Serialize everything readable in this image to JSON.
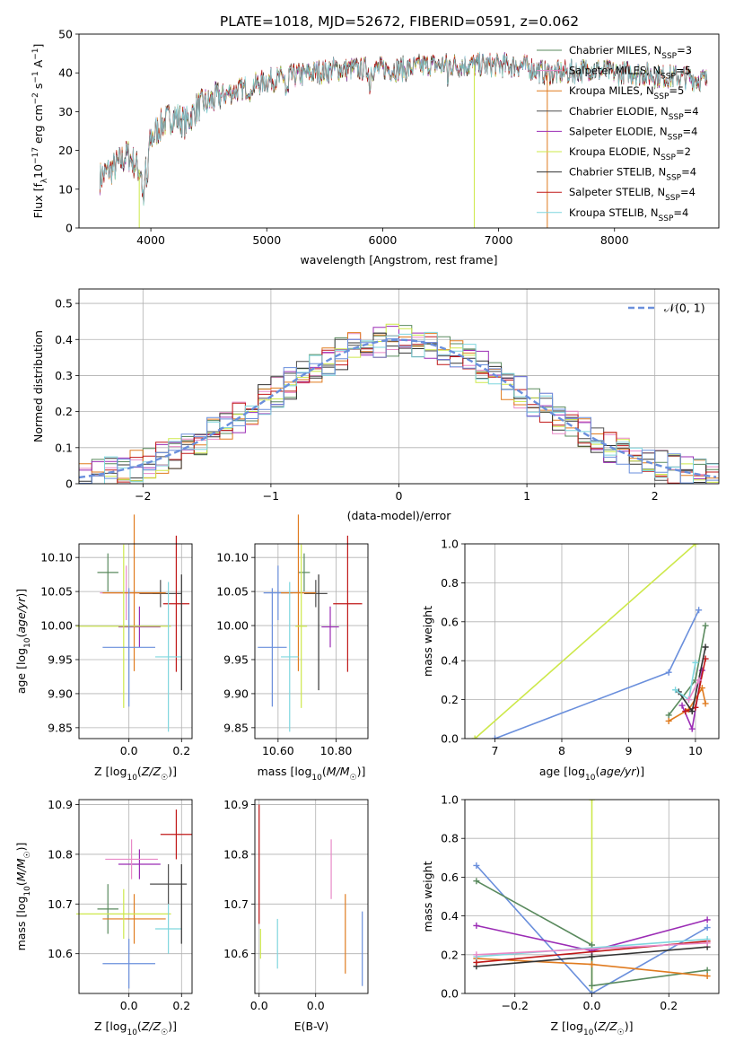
{
  "title": "PLATE=1018, MJD=52672, FIBERID=0591, z=0.062",
  "colors": {
    "chabrier_miles": "#5a8a5e",
    "salpeter_miles": "#e889c7",
    "kroupa_miles": "#e07b1f",
    "chabrier_elodie": "#4e4e4e",
    "salpeter_elodie": "#9b2cb5",
    "kroupa_elodie": "#cde84a",
    "chabrier_stelib": "#333333",
    "salpeter_stelib": "#c01818",
    "kroupa_stelib": "#7fd6de",
    "normal": "#6a8fdc"
  },
  "chart_data": [
    {
      "id": "spectrum",
      "type": "line",
      "xlabel": "wavelength [Angstrom, rest frame]",
      "ylabel": "Flux [f_λ 10^{-17} erg cm^{-2} s^{-1} A^{-1}]",
      "xlim": [
        3380,
        8900
      ],
      "ylim": [
        0,
        50
      ],
      "xticks": [
        4000,
        5000,
        6000,
        7000,
        8000
      ],
      "yticks": [
        0,
        10,
        20,
        30,
        40,
        50
      ],
      "grid": false,
      "legend_position": "upper right",
      "anchors": {
        "x": [
          3560,
          3700,
          3800,
          3900,
          3950,
          4000,
          4100,
          4200,
          4300,
          4400,
          4600,
          4800,
          5000,
          5200,
          5400,
          5600,
          5800,
          6000,
          6200,
          6400,
          6600,
          6800,
          7000,
          7200,
          7400,
          7600,
          7800,
          8000,
          8200,
          8400,
          8600,
          8800
        ],
        "y": [
          13,
          16,
          19,
          15,
          14,
          23,
          27,
          29,
          27,
          31,
          34,
          36,
          38,
          39,
          40,
          41,
          41,
          41,
          41,
          42,
          42,
          42,
          42,
          42,
          40,
          40,
          41,
          40,
          40,
          39,
          39,
          38
        ]
      },
      "drops": [
        {
          "x": 3900,
          "y": 0
        },
        {
          "x": 6790,
          "y": 0
        },
        {
          "x": 7420,
          "y": 0
        }
      ],
      "legend": [
        {
          "label": "Chabrier MILES, N",
          "sub": "SSP",
          "suffix": "=3",
          "color": "#5a8a5e"
        },
        {
          "label": "Salpeter MILES, N",
          "sub": "SSP",
          "suffix": "=5",
          "color": "#e889c7"
        },
        {
          "label": "Kroupa MILES, N",
          "sub": "SSP",
          "suffix": "=5",
          "color": "#e07b1f"
        },
        {
          "label": "Chabrier ELODIE, N",
          "sub": "SSP",
          "suffix": "=4",
          "color": "#4e4e4e"
        },
        {
          "label": "Salpeter ELODIE, N",
          "sub": "SSP",
          "suffix": "=4",
          "color": "#9b2cb5"
        },
        {
          "label": "Kroupa ELODIE, N",
          "sub": "SSP",
          "suffix": "=2",
          "color": "#cde84a"
        },
        {
          "label": "Chabrier STELIB, N",
          "sub": "SSP",
          "suffix": "=4",
          "color": "#333333"
        },
        {
          "label": "Salpeter STELIB, N",
          "sub": "SSP",
          "suffix": "=4",
          "color": "#c01818"
        },
        {
          "label": "Kroupa STELIB, N",
          "sub": "SSP",
          "suffix": "=4",
          "color": "#7fd6de"
        }
      ]
    },
    {
      "id": "residuals",
      "type": "step",
      "xlabel": "(data-model)/error",
      "ylabel": "Normed distribution",
      "xlim": [
        -2.5,
        2.5
      ],
      "ylim": [
        0,
        0.54
      ],
      "xticks": [
        -2,
        -1,
        0,
        1,
        2
      ],
      "yticks": [
        0.0,
        0.1,
        0.2,
        0.3,
        0.4,
        0.5
      ],
      "grid": true,
      "legend": "𝒩(0, 1)",
      "legend_position": "upper right",
      "bin_width": 0.1
    },
    {
      "id": "age_vs_Z",
      "type": "errorbar",
      "xlabel": "Z [log₁₀(Z/Z☉)]",
      "ylabel": "age  [log₁₀(age/yr)]",
      "xlim": [
        -0.19,
        0.24
      ],
      "ylim": [
        9.834,
        10.12
      ],
      "xticks": [
        0.0,
        0.2
      ],
      "yticks": [
        9.85,
        9.9,
        9.95,
        10.0,
        10.05,
        10.1
      ],
      "grid": true,
      "points": [
        {
          "x": -0.08,
          "xerr": 0.04,
          "y": 10.078,
          "yerr": 0.028,
          "color": "#5a8a5e"
        },
        {
          "x": 0.12,
          "xerr": 0.08,
          "y": 10.047,
          "yerr": 0.02,
          "color": "#4e4e4e"
        },
        {
          "x": 0.04,
          "xerr": 0.08,
          "y": 9.998,
          "yerr": 0.03,
          "color": "#9b2cb5"
        },
        {
          "x": -0.01,
          "xerr": 0.1,
          "y": 10.048,
          "yerr": 0.04,
          "color": "#e889c7"
        },
        {
          "x": 0.02,
          "xerr": 0.12,
          "y": 10.048,
          "yerr": 0.115,
          "color": "#e07b1f"
        },
        {
          "x": -0.02,
          "xerr": 0.18,
          "y": 9.999,
          "yerr": 0.12,
          "color": "#cde84a"
        },
        {
          "x": 0.0,
          "xerr": 0.1,
          "y": 9.968,
          "yerr": 0.087,
          "color": "#6a8fdc"
        },
        {
          "x": 0.18,
          "xerr": 0.05,
          "y": 10.032,
          "yerr": 0.1,
          "color": "#c01818"
        },
        {
          "x": 0.15,
          "xerr": 0.05,
          "y": 9.954,
          "yerr": 0.11,
          "color": "#7fd6de"
        },
        {
          "x": 0.2,
          "xerr": 0.0,
          "y": 9.99,
          "yerr": 0.085,
          "color": "#333333"
        }
      ]
    },
    {
      "id": "age_vs_mass",
      "type": "errorbar",
      "xlabel": "mass [log₁₀(M/M☉)]",
      "ylabel": "",
      "xlim": [
        10.52,
        10.91
      ],
      "ylim": [
        9.834,
        10.12
      ],
      "xticks": [
        10.6,
        10.8
      ],
      "yticks": [
        9.85,
        9.9,
        9.95,
        10.0,
        10.05,
        10.1
      ],
      "grid": true,
      "points": [
        {
          "x": 10.69,
          "xerr": 0.02,
          "y": 10.078,
          "yerr": 0.028,
          "color": "#5a8a5e"
        },
        {
          "x": 10.73,
          "xerr": 0.04,
          "y": 10.047,
          "yerr": 0.02,
          "color": "#4e4e4e"
        },
        {
          "x": 10.78,
          "xerr": 0.03,
          "y": 9.998,
          "yerr": 0.03,
          "color": "#9b2cb5"
        },
        {
          "x": 10.6,
          "xerr": 0.05,
          "y": 10.048,
          "yerr": 0.04,
          "color": "#6a8fdc"
        },
        {
          "x": 10.67,
          "xerr": 0.06,
          "y": 10.048,
          "yerr": 0.115,
          "color": "#e07b1f"
        },
        {
          "x": 10.68,
          "xerr": 0.02,
          "y": 9.999,
          "yerr": 0.12,
          "color": "#cde84a"
        },
        {
          "x": 10.58,
          "xerr": 0.05,
          "y": 9.968,
          "yerr": 0.087,
          "color": "#6a8fdc"
        },
        {
          "x": 10.84,
          "xerr": 0.05,
          "y": 10.032,
          "yerr": 0.1,
          "color": "#c01818"
        },
        {
          "x": 10.64,
          "xerr": 0.03,
          "y": 9.954,
          "yerr": 0.11,
          "color": "#7fd6de"
        },
        {
          "x": 10.74,
          "xerr": 0.0,
          "y": 9.99,
          "yerr": 0.085,
          "color": "#333333"
        }
      ]
    },
    {
      "id": "weight_vs_age",
      "type": "line",
      "xlabel": "age  [log₁₀(age/yr)]",
      "ylabel": "mass weight",
      "xlim": [
        6.55,
        10.35
      ],
      "ylim": [
        0,
        1
      ],
      "xticks": [
        7,
        8,
        9,
        10
      ],
      "yticks": [
        0.0,
        0.2,
        0.4,
        0.6,
        0.8,
        1.0
      ],
      "grid": true,
      "series": [
        {
          "color": "#cde84a",
          "points": [
            [
              6.7,
              0.0
            ],
            [
              10.0,
              1.0
            ]
          ]
        },
        {
          "color": "#6a8fdc",
          "points": [
            [
              7.0,
              0.0
            ],
            [
              9.6,
              0.34
            ],
            [
              10.05,
              0.66
            ]
          ]
        },
        {
          "color": "#5a8a5e",
          "points": [
            [
              9.6,
              0.12
            ],
            [
              10.0,
              0.3
            ],
            [
              10.15,
              0.58
            ]
          ]
        },
        {
          "color": "#e07b1f",
          "points": [
            [
              9.6,
              0.09
            ],
            [
              9.9,
              0.15
            ],
            [
              10.1,
              0.26
            ],
            [
              10.15,
              0.18
            ]
          ]
        },
        {
          "color": "#9b2cb5",
          "points": [
            [
              9.8,
              0.17
            ],
            [
              9.95,
              0.05
            ],
            [
              10.1,
              0.35
            ]
          ]
        },
        {
          "color": "#c01818",
          "points": [
            [
              9.85,
              0.14
            ],
            [
              10.0,
              0.16
            ],
            [
              10.15,
              0.41
            ]
          ]
        },
        {
          "color": "#333333",
          "points": [
            [
              9.75,
              0.24
            ],
            [
              9.95,
              0.14
            ],
            [
              10.15,
              0.47
            ]
          ]
        },
        {
          "color": "#7fd6de",
          "points": [
            [
              9.7,
              0.25
            ],
            [
              9.9,
              0.2
            ],
            [
              10.0,
              0.39
            ]
          ]
        },
        {
          "color": "#e889c7",
          "points": [
            [
              9.9,
              0.2
            ],
            [
              10.05,
              0.3
            ]
          ]
        }
      ]
    },
    {
      "id": "mass_vs_Z",
      "type": "errorbar",
      "xlabel": "Z [log₁₀(Z/Z☉)]",
      "ylabel": "mass [log₁₀(M/M☉)]",
      "xlim": [
        -0.19,
        0.24
      ],
      "ylim": [
        10.52,
        10.91
      ],
      "xticks": [
        0.0,
        0.2
      ],
      "yticks": [
        10.6,
        10.7,
        10.8,
        10.9
      ],
      "grid": true,
      "points": [
        {
          "x": -0.08,
          "xerr": 0.04,
          "y": 10.69,
          "yerr": 0.05,
          "color": "#5a8a5e"
        },
        {
          "x": 0.15,
          "xerr": 0.07,
          "y": 10.74,
          "yerr": 0.04,
          "color": "#4e4e4e"
        },
        {
          "x": 0.04,
          "xerr": 0.08,
          "y": 10.78,
          "yerr": 0.03,
          "color": "#9b2cb5"
        },
        {
          "x": 0.01,
          "xerr": 0.1,
          "y": 10.79,
          "yerr": 0.04,
          "color": "#e889c7"
        },
        {
          "x": 0.02,
          "xerr": 0.12,
          "y": 10.67,
          "yerr": 0.05,
          "color": "#e07b1f"
        },
        {
          "x": -0.02,
          "xerr": 0.18,
          "y": 10.68,
          "yerr": 0.05,
          "color": "#cde84a"
        },
        {
          "x": 0.0,
          "xerr": 0.1,
          "y": 10.58,
          "yerr": 0.05,
          "color": "#6a8fdc"
        },
        {
          "x": 0.18,
          "xerr": 0.06,
          "y": 10.84,
          "yerr": 0.05,
          "color": "#c01818"
        },
        {
          "x": 0.15,
          "xerr": 0.05,
          "y": 10.65,
          "yerr": 0.05,
          "color": "#7fd6de"
        },
        {
          "x": 0.2,
          "xerr": 0.0,
          "y": 10.7,
          "yerr": 0.08,
          "color": "#333333"
        }
      ]
    },
    {
      "id": "mass_vs_ebv",
      "type": "errorbar",
      "xlabel": "E(B-V)",
      "ylabel": "",
      "xlim": [
        -0.0015,
        0.0385
      ],
      "ylim": [
        10.52,
        10.91
      ],
      "xticks": [
        0.0,
        0.02
      ],
      "yticks": [
        10.6,
        10.7,
        10.8,
        10.9
      ],
      "grid": true,
      "points": [
        {
          "x": 0.0,
          "xerr": 0.0,
          "y": 10.78,
          "yerr": 0.12,
          "color": "#c01818"
        },
        {
          "x": 0.0005,
          "xerr": 0.0,
          "y": 10.62,
          "yerr": 0.03,
          "color": "#cde84a"
        },
        {
          "x": 0.0065,
          "xerr": 0.0,
          "y": 10.62,
          "yerr": 0.05,
          "color": "#7fd6de"
        },
        {
          "x": 0.0255,
          "xerr": 0.0,
          "y": 10.77,
          "yerr": 0.06,
          "color": "#e889c7"
        },
        {
          "x": 0.0305,
          "xerr": 0.0,
          "y": 10.64,
          "yerr": 0.08,
          "color": "#e07b1f"
        },
        {
          "x": 0.0365,
          "xerr": 0.0,
          "y": 10.61,
          "yerr": 0.075,
          "color": "#6a8fdc"
        }
      ]
    },
    {
      "id": "weight_vs_Z",
      "type": "line",
      "xlabel": "Z [log₁₀(Z/Z☉)]",
      "ylabel": "mass weight",
      "xlim": [
        -0.33,
        0.33
      ],
      "ylim": [
        0,
        1
      ],
      "xticks": [
        -0.2,
        0.0,
        0.2
      ],
      "yticks": [
        0.0,
        0.2,
        0.4,
        0.6,
        0.8,
        1.0
      ],
      "grid": true,
      "series": [
        {
          "color": "#cde84a",
          "points": [
            [
              0.0,
              0.0
            ],
            [
              0.0,
              1.0
            ]
          ]
        },
        {
          "color": "#6a8fdc",
          "points": [
            [
              -0.3,
              0.66
            ],
            [
              0.0,
              0.0
            ],
            [
              0.3,
              0.34
            ]
          ]
        },
        {
          "color": "#5a8a5e",
          "points": [
            [
              -0.3,
              0.58
            ],
            [
              0.0,
              0.25
            ],
            [
              0.0,
              0.04
            ],
            [
              0.3,
              0.12
            ]
          ]
        },
        {
          "color": "#9b2cb5",
          "points": [
            [
              -0.3,
              0.35
            ],
            [
              0.0,
              0.22
            ],
            [
              0.3,
              0.38
            ]
          ]
        },
        {
          "color": "#e07b1f",
          "points": [
            [
              -0.3,
              0.18
            ],
            [
              0.0,
              0.15
            ],
            [
              0.3,
              0.09
            ]
          ]
        },
        {
          "color": "#333333",
          "points": [
            [
              -0.3,
              0.14
            ],
            [
              0.0,
              0.19
            ],
            [
              0.3,
              0.24
            ]
          ]
        },
        {
          "color": "#c01818",
          "points": [
            [
              -0.3,
              0.16
            ],
            [
              0.3,
              0.27
            ]
          ]
        },
        {
          "color": "#7fd6de",
          "points": [
            [
              -0.3,
              0.19
            ],
            [
              0.3,
              0.28
            ]
          ]
        },
        {
          "color": "#e889c7",
          "points": [
            [
              -0.3,
              0.2
            ],
            [
              0.3,
              0.26
            ]
          ]
        }
      ]
    }
  ]
}
